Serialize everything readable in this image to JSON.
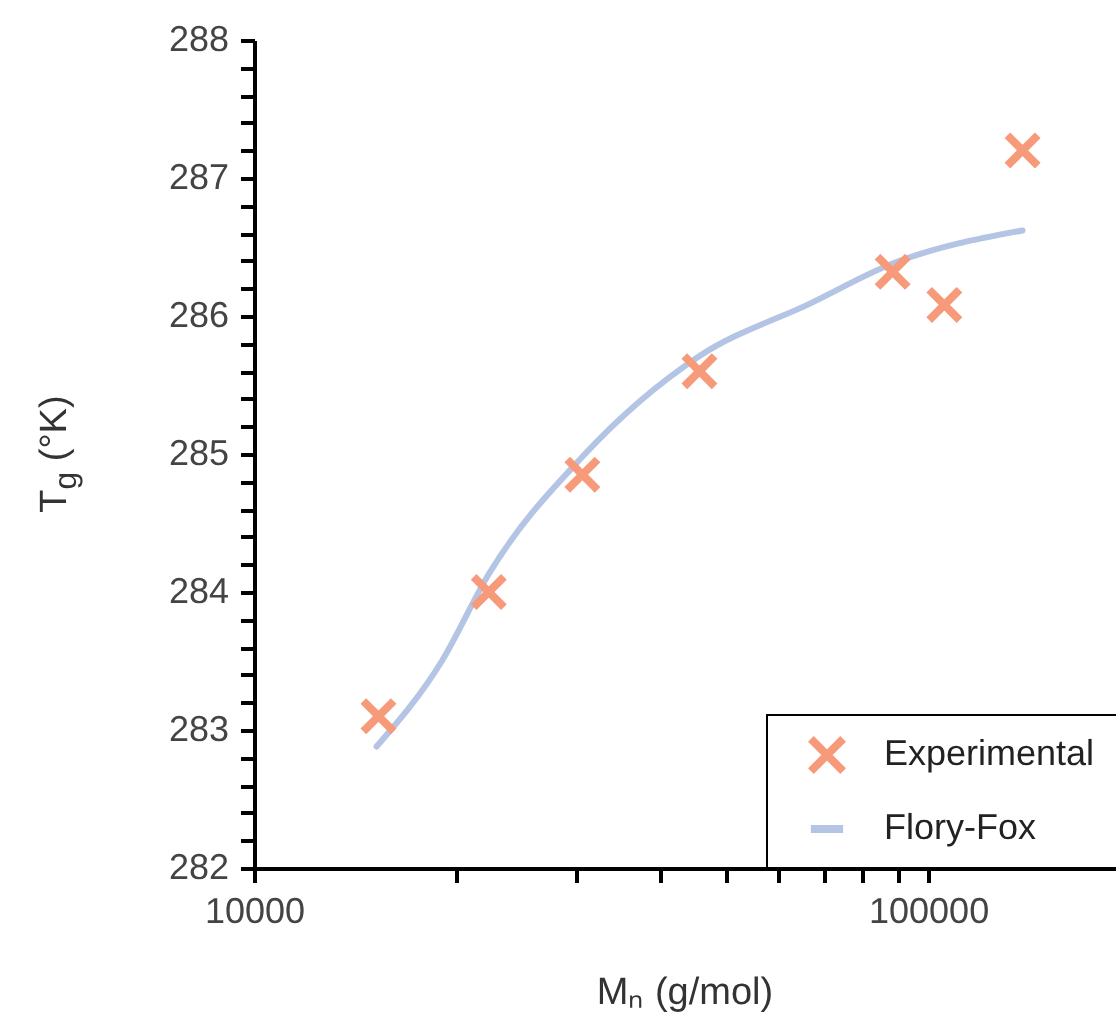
{
  "chart_data": {
    "type": "scatter",
    "xlabel": "Mₙ (g/mol)",
    "ylabel": "T$_{g}$ (°K)",
    "log": "x",
    "xlim": [
      10000,
      190000
    ],
    "ylim": [
      282,
      288
    ],
    "xticks": [
      10000,
      {
        "value": 20000,
        "label": null
      },
      {
        "value": 30000,
        "label": null
      },
      {
        "value": 40000,
        "label": null
      },
      {
        "value": 50000,
        "label": null
      },
      {
        "value": 60000,
        "label": null
      },
      {
        "value": 70000,
        "label": null
      },
      {
        "value": 80000,
        "label": null
      },
      {
        "value": 90000,
        "label": null
      },
      100000
    ],
    "yticks": [
      282,
      {
        "value": 282.2,
        "label": null
      },
      {
        "value": 282.4,
        "label": null
      },
      {
        "value": 282.6,
        "label": null
      },
      {
        "value": 282.8,
        "label": null
      },
      283,
      {
        "value": 283.2,
        "label": null
      },
      {
        "value": 283.4,
        "label": null
      },
      {
        "value": 283.6,
        "label": null
      },
      {
        "value": 283.8,
        "label": null
      },
      284,
      {
        "value": 284.2,
        "label": null
      },
      {
        "value": 284.4,
        "label": null
      },
      {
        "value": 284.6,
        "label": null
      },
      {
        "value": 284.8,
        "label": null
      },
      285,
      {
        "value": 285.2,
        "label": null
      },
      {
        "value": 285.4,
        "label": null
      },
      {
        "value": 285.6,
        "label": null
      },
      {
        "value": 285.8,
        "label": null
      },
      286,
      {
        "value": 286.2,
        "label": null
      },
      {
        "value": 286.4,
        "label": null
      },
      {
        "value": 286.6,
        "label": null
      },
      {
        "value": 286.8,
        "label": null
      },
      287,
      {
        "value": 287.2,
        "label": null
      },
      {
        "value": 287.4,
        "label": null
      },
      {
        "value": 287.6,
        "label": null
      },
      {
        "value": 287.8,
        "label": null
      },
      288
    ],
    "grid": false,
    "legend": "bottom right",
    "series": [
      {
        "name": "Experimental",
        "color": "#f79a7a",
        "marker": "cross",
        "x": [
          15300,
          22300,
          30700,
          45800,
          88600,
          105700,
          138100
        ],
        "values": [
          283.1,
          284.0,
          284.85,
          285.6,
          286.32,
          286.08,
          287.2
        ]
      },
      {
        "name": "Flory-Fox",
        "type": "line",
        "line_style": "solid",
        "color": "#b4c4e4",
        "x": [
          15200,
          19000,
          22300,
          30700,
          45800,
          66800,
          88600,
          138100
        ],
        "values": [
          282.88,
          283.5,
          284.13,
          284.98,
          285.71,
          286.09,
          286.38,
          286.62
        ]
      }
    ]
  }
}
